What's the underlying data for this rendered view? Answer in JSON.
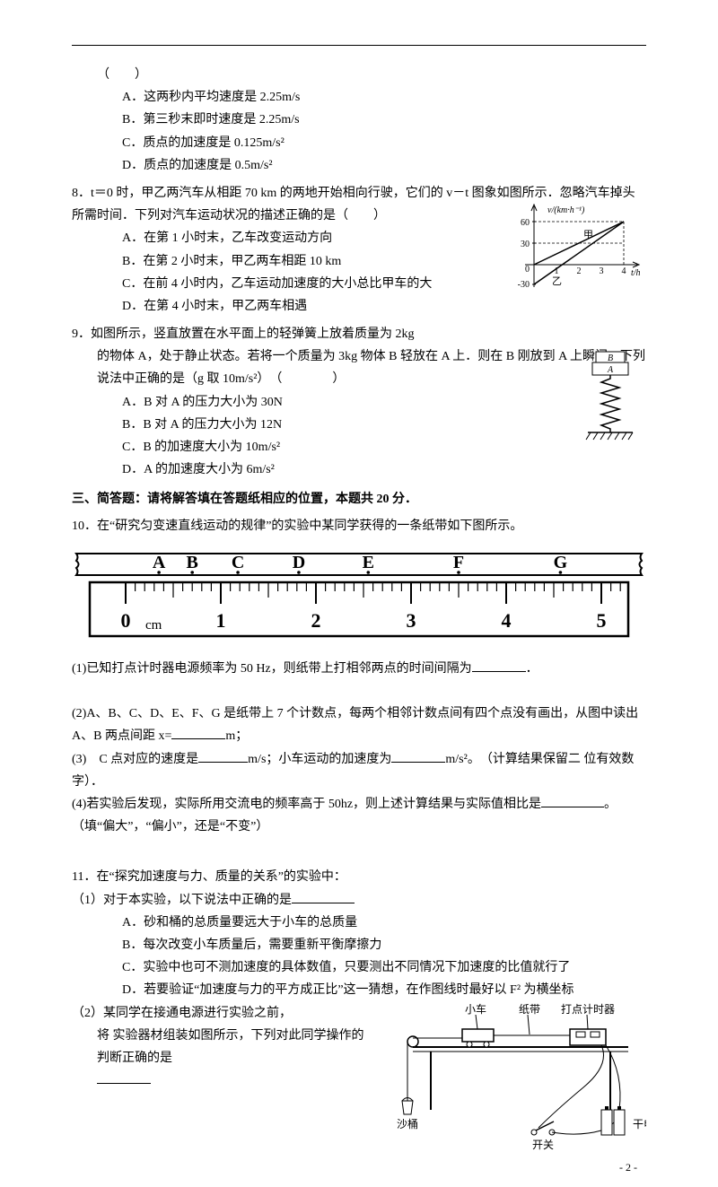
{
  "page": {
    "number": "- 2 -"
  },
  "q_continued": {
    "paren": "（　　）",
    "opts": {
      "A": "A．这两秒内平均速度是 2.25m/s",
      "B": "B．第三秒末即时速度是 2.25m/s",
      "C": "C．质点的加速度是 0.125m/s²",
      "D": "D．质点的加速度是 0.5m/s²"
    }
  },
  "q8": {
    "stem": "8．t＝0 时，甲乙两汽车从相距 70 km 的两地开始相向行驶，它们的 v－t 图象如图所示．忽略汽车掉头所需时间．下列对汽车运动状况的描述正确的是（　　）",
    "opts": {
      "A": "A．在第 1 小时末，乙车改变运动方向",
      "B": "B．在第 2 小时末，甲乙两车相距 10 km",
      "C": "C．在前 4 小时内，乙车运动加速度的大小总比甲车的大",
      "D": "D．在第 4 小时末，甲乙两车相遇"
    },
    "graph": {
      "ylabel": "v/(km·h⁻¹)",
      "xlabel": "t/h",
      "yticks": [
        60,
        30,
        0,
        -30
      ],
      "xticks": [
        1,
        2,
        3,
        4
      ],
      "label_jia": "甲",
      "label_yi": "乙",
      "colors": {
        "axis": "#000000",
        "line": "#000000",
        "dash": "#000000"
      }
    }
  },
  "q9": {
    "stem1": "9．如图所示，竖直放置在水平面上的轻弹簧上放着质量为 2kg",
    "stem2": "的物体 A，处于静止状态。若将一个质量为 3kg 物体 B 轻放在 A 上．则在 B 刚放到 A 上瞬间，下列说法中正确的是（g 取 10m/s²）　（　　　　）",
    "opts": {
      "A": "A．B 对 A 的压力大小为 30N",
      "B": "B．B 对 A 的压力大小为 12N",
      "C": "C．B 的加速度大小为 10m/s²",
      "D": "D．A 的加速度大小为 6m/s²"
    },
    "fig": {
      "labelB": "B",
      "labelA": "A"
    }
  },
  "section3_title": "三、简答题：请将解答填在答题纸相应的位置，本题共 20 分．",
  "q10": {
    "stem": "10．在“研究匀变速直线运动的规律”的实验中某同学获得的一条纸带如下图所示。",
    "ruler": {
      "letters": [
        "A",
        "B",
        "C",
        "D",
        "E",
        "F",
        "G"
      ],
      "letter_x_cm": [
        0.35,
        0.7,
        1.18,
        1.82,
        2.55,
        3.5,
        4.57
      ],
      "major_ticks": [
        0,
        1,
        2,
        3,
        4,
        5
      ],
      "unit": "cm",
      "zero_label": "0",
      "colors": {
        "stroke": "#000000",
        "fill": "#ffffff"
      }
    },
    "p1": "(1)已知打点计时器电源频率为 50 Hz，则纸带上打相邻两点的时间间隔为",
    "p1_end": "．",
    "p2_a": "(2)A、B、C、D、E、F、G 是纸带上 7 个计数点，每两个相邻计数点间有四个点没有画出，从图中读出 A、B 两点间距 x=",
    "p2_unit": "m；",
    "p3_a": "(3)　C 点对应的速度是",
    "p3_mid": "m/s；小车运动的加速度为",
    "p3_end": "m/s²。　（计算结果保留二 位有效数字）．",
    "p4_a": "(4)若实验后发现，实际所用交流电的频率高于 50hz，则上述计算结果与实际值相比是",
    "p4_end": "。（填“偏大”，“偏小”，还是“不变”）"
  },
  "q11": {
    "stem": "11．在“探究加速度与力、质量的关系”的实验中：",
    "p1": "（1）对于本实验，以下说法中正确的是",
    "opts": {
      "A": "A．砂和桶的总质量要远大于小车的总质量",
      "B": "B．每次改变小车质量后，需要重新平衡摩擦力",
      "C": "C．实验中也可不测加速度的具体数值，只要测出不同情况下加速度的比值就行了",
      "D": "D．若要验证“加速度与力的平方成正比”这一猜想，在作图线时最好以 F² 为横坐标"
    },
    "p2_a": "（2）某同学在接通电源进行实验之前，",
    "p2_b": "将 实验器材组装如图所示，下列对此同学操作的判断正确的是",
    "fig": {
      "labels": {
        "car": "小车",
        "tape": "纸带",
        "timer": "打点计时器",
        "bucket": "沙桶",
        "switch": "开关",
        "battery": "干电池"
      }
    }
  }
}
